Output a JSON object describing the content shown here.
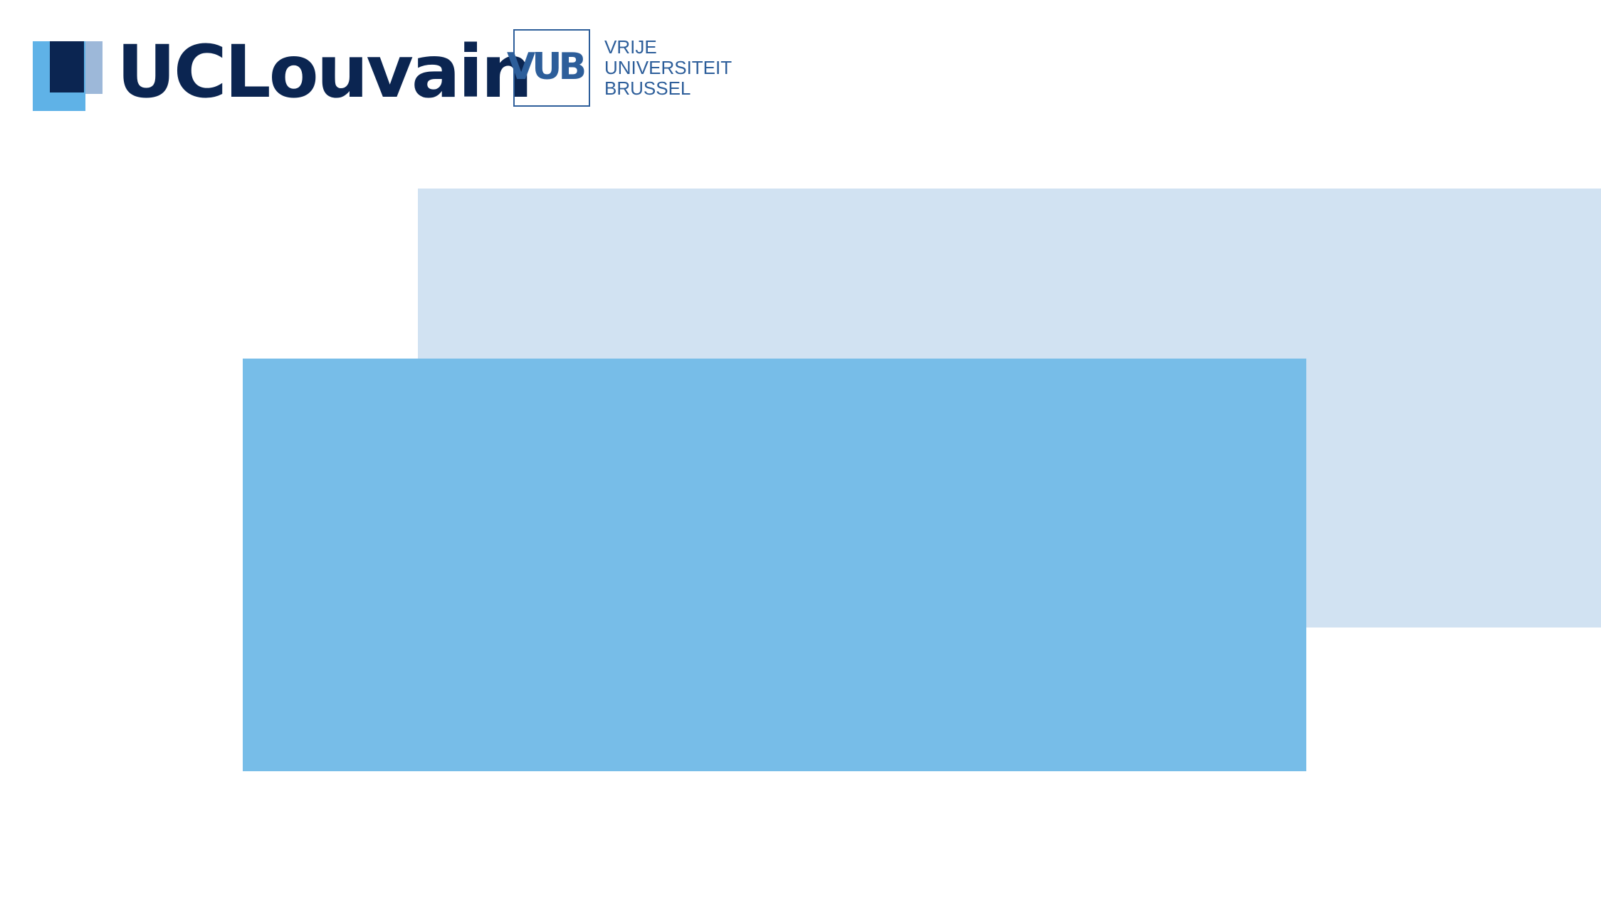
{
  "logos": {
    "uclouvain": {
      "wordmark": "UCLouvain"
    },
    "vub": {
      "letters": "VUB",
      "lines": [
        "VRIJE",
        "UNIVERSITEIT",
        "BRUSSEL"
      ]
    }
  },
  "colors": {
    "ucl_navy": "#0b2551",
    "ucl_light_blue": "#5fb2e7",
    "ucl_grey_blue": "#9db8d9",
    "vub_blue": "#2d5e9a",
    "panel_light": "#d1e2f2",
    "panel_main": "#77bde8"
  }
}
